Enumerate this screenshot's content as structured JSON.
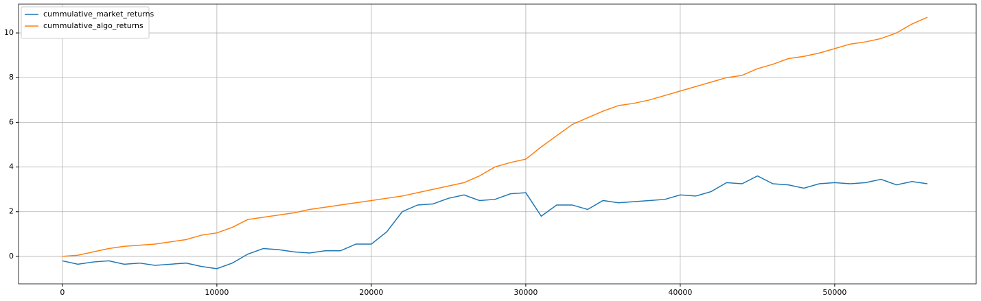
{
  "chart_data": {
    "type": "line",
    "x": [
      0,
      1000,
      2000,
      3000,
      4000,
      5000,
      6000,
      7000,
      8000,
      9000,
      10000,
      11000,
      12000,
      13000,
      14000,
      15000,
      16000,
      17000,
      18000,
      19000,
      20000,
      21000,
      22000,
      23000,
      24000,
      25000,
      26000,
      27000,
      28000,
      29000,
      30000,
      31000,
      32000,
      33000,
      34000,
      35000,
      36000,
      37000,
      38000,
      39000,
      40000,
      41000,
      42000,
      43000,
      44000,
      45000,
      46000,
      47000,
      48000,
      49000,
      50000,
      51000,
      52000,
      53000,
      54000,
      55000,
      56000
    ],
    "series": [
      {
        "name": "cummulative_market_returns",
        "color": "#1f77b4",
        "values": [
          -0.2,
          -0.35,
          -0.25,
          -0.2,
          -0.35,
          -0.3,
          -0.4,
          -0.35,
          -0.3,
          -0.45,
          -0.55,
          -0.3,
          0.1,
          0.35,
          0.3,
          0.2,
          0.15,
          0.25,
          0.25,
          0.55,
          0.55,
          1.1,
          2.0,
          2.3,
          2.35,
          2.6,
          2.75,
          2.5,
          2.55,
          2.8,
          2.85,
          1.8,
          2.3,
          2.3,
          2.1,
          2.5,
          2.4,
          2.45,
          2.5,
          2.55,
          2.75,
          2.7,
          2.9,
          3.3,
          3.25,
          3.6,
          3.25,
          3.2,
          3.05,
          3.25,
          3.3,
          3.25,
          3.3,
          3.45,
          3.2,
          3.35,
          3.25
        ]
      },
      {
        "name": "cummulative_algo_returns",
        "color": "#ff7f0e",
        "values": [
          0,
          0.05,
          0.2,
          0.35,
          0.45,
          0.5,
          0.55,
          0.65,
          0.75,
          0.95,
          1.05,
          1.3,
          1.65,
          1.75,
          1.85,
          1.95,
          2.1,
          2.2,
          2.3,
          2.4,
          2.5,
          2.6,
          2.7,
          2.85,
          3.0,
          3.15,
          3.3,
          3.6,
          4.0,
          4.2,
          4.35,
          4.9,
          5.4,
          5.9,
          6.2,
          6.5,
          6.75,
          6.85,
          7.0,
          7.2,
          7.4,
          7.6,
          7.8,
          8.0,
          8.1,
          8.4,
          8.6,
          8.85,
          8.95,
          9.1,
          9.3,
          9.5,
          9.6,
          9.75,
          10.0,
          10.4,
          10.7
        ]
      }
    ],
    "xlim": [
      -2840,
      59160
    ],
    "xticks": [
      0,
      10000,
      20000,
      30000,
      40000,
      50000
    ],
    "ylim": [
      -1.23,
      11.29
    ],
    "yticks": [
      0,
      2,
      4,
      6,
      8,
      10
    ],
    "grid": true,
    "legend": "upper left"
  }
}
